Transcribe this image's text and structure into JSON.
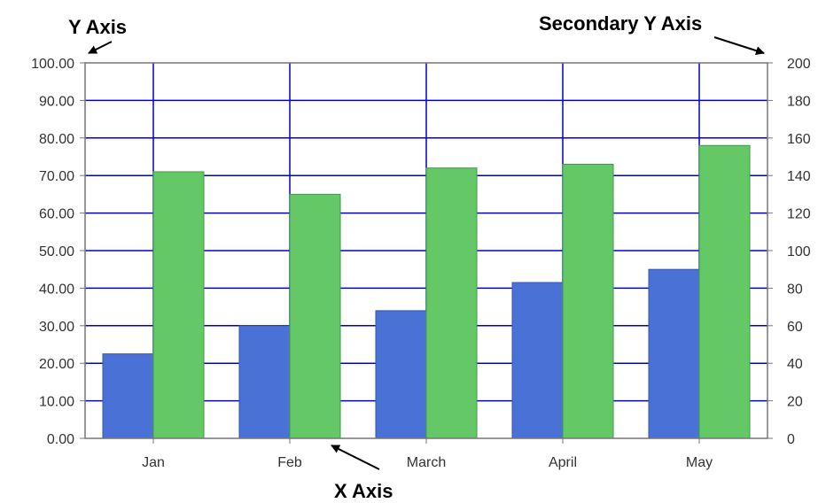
{
  "colors": {
    "grid": "#0000cc",
    "axis": "#777777",
    "series1": "#4a72d6",
    "series1_stroke": "#3356b0",
    "series2": "#63c865",
    "series2_stroke": "#3f9b43",
    "text": "#333333"
  },
  "callouts": {
    "y_axis": "Y Axis",
    "secondary_y_axis": "Secondary Y Axis",
    "x_axis": "X Axis"
  },
  "chart_data": {
    "type": "bar",
    "categories": [
      "Jan",
      "Feb",
      "March",
      "April",
      "May"
    ],
    "series": [
      {
        "axis": "primary",
        "values": [
          22.5,
          30.0,
          34.0,
          41.5,
          45.0
        ]
      },
      {
        "axis": "secondary",
        "values": [
          142,
          130,
          144,
          146,
          156
        ]
      }
    ],
    "ylim": [
      0,
      100
    ],
    "y2lim": [
      0,
      200
    ],
    "y_ticks": [
      "0.00",
      "10.00",
      "20.00",
      "30.00",
      "40.00",
      "50.00",
      "60.00",
      "70.00",
      "80.00",
      "90.00",
      "100.00"
    ],
    "y2_ticks": [
      "0",
      "20",
      "40",
      "60",
      "80",
      "100",
      "120",
      "140",
      "160",
      "180",
      "200"
    ],
    "grid": true,
    "legend": false
  }
}
